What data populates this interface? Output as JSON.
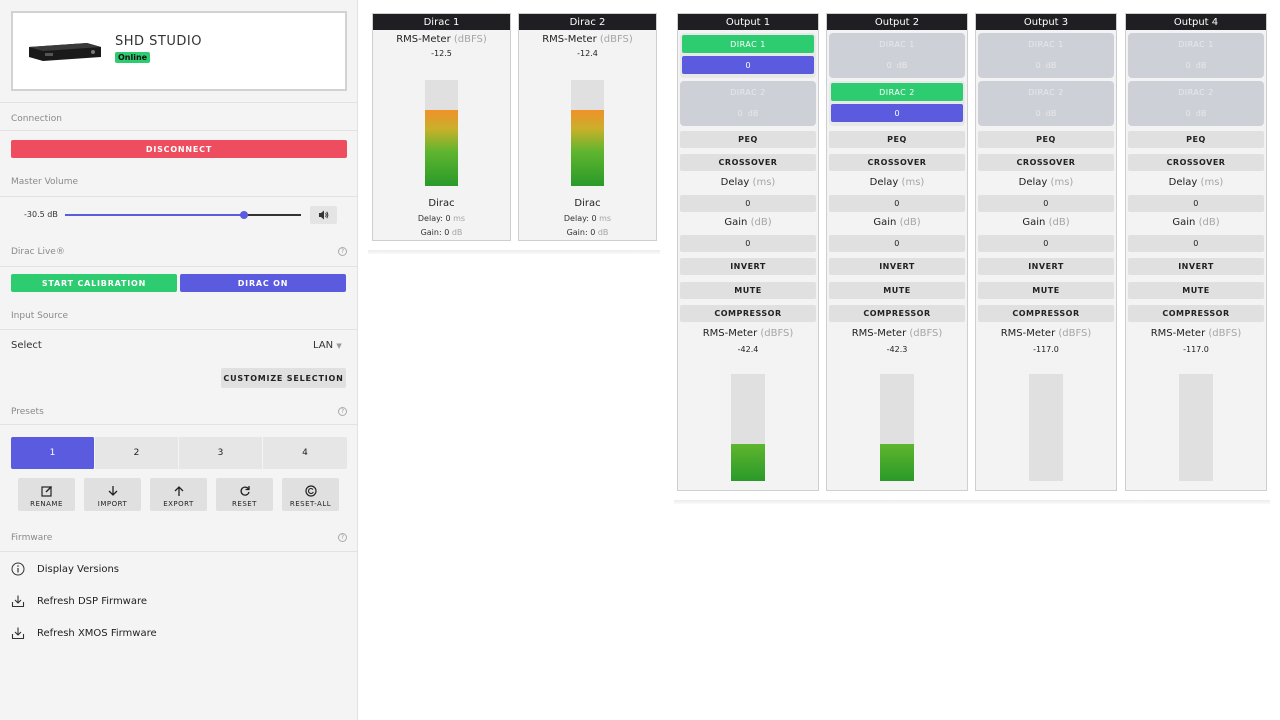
{
  "device": {
    "name": "SHD STUDIO",
    "status": "Online"
  },
  "sections": {
    "connection": "Connection",
    "master_volume": "Master Volume",
    "dirac_live": "Dirac Live®",
    "input_source": "Input Source",
    "presets": "Presets",
    "firmware": "Firmware"
  },
  "buttons": {
    "disconnect": "DISCONNECT",
    "start_calibration": "START CALIBRATION",
    "dirac_on": "DIRAC ON",
    "customize_selection": "CUSTOMIZE SELECTION"
  },
  "volume": {
    "label": "-30.5 dB",
    "position": 0.76
  },
  "input": {
    "label": "Select",
    "value": "LAN"
  },
  "presets": {
    "items": [
      "1",
      "2",
      "3",
      "4"
    ],
    "active": "1",
    "actions": [
      "RENAME",
      "IMPORT",
      "EXPORT",
      "RESET",
      "RESET-ALL"
    ]
  },
  "firmware": {
    "items": [
      "Display Versions",
      "Refresh DSP Firmware",
      "Refresh XMOS Firmware"
    ]
  },
  "colors": {
    "accent": "#5b5bdf",
    "green": "#2ecc71",
    "danger": "#ee4d5f"
  },
  "dirac_panels": [
    {
      "title": "Dirac 1",
      "rms_label": "RMS-Meter",
      "rms_unit": "(dBFS)",
      "rms": "-12.5",
      "level": 0.72,
      "name": "Dirac",
      "delay_label": "Delay:",
      "delay": "0",
      "delay_unit": "ms",
      "gain_label": "Gain:",
      "gain": "0",
      "gain_unit": "dB"
    },
    {
      "title": "Dirac 2",
      "rms_label": "RMS-Meter",
      "rms_unit": "(dBFS)",
      "rms": "-12.4",
      "level": 0.72,
      "name": "Dirac",
      "delay_label": "Delay:",
      "delay": "0",
      "delay_unit": "ms",
      "gain_label": "Gain:",
      "gain": "0",
      "gain_unit": "dB"
    }
  ],
  "output_panels": [
    {
      "title": "Output 1",
      "d1": "DIRAC 1",
      "d1v": "0",
      "d2": "DIRAC 2",
      "d2v": "0",
      "d2unit": "dB",
      "active": 1,
      "peq": "PEQ",
      "crossover": "CROSSOVER",
      "delay_label": "Delay",
      "delay_unit": "(ms)",
      "delay": "0",
      "gain_label": "Gain",
      "gain_unit": "(dB)",
      "gain": "0",
      "invert": "INVERT",
      "mute": "MUTE",
      "compressor": "COMPRESSOR",
      "rms_label": "RMS-Meter",
      "rms_unit": "(dBFS)",
      "rms": "-42.4",
      "level": 0.35
    },
    {
      "title": "Output 2",
      "d1": "DIRAC 1",
      "d1v": "0",
      "d1unit": "dB",
      "d2": "DIRAC 2",
      "d2v": "0",
      "active": 2,
      "peq": "PEQ",
      "crossover": "CROSSOVER",
      "delay_label": "Delay",
      "delay_unit": "(ms)",
      "delay": "0",
      "gain_label": "Gain",
      "gain_unit": "(dB)",
      "gain": "0",
      "invert": "INVERT",
      "mute": "MUTE",
      "compressor": "COMPRESSOR",
      "rms_label": "RMS-Meter",
      "rms_unit": "(dBFS)",
      "rms": "-42.3",
      "level": 0.35
    },
    {
      "title": "Output 3",
      "d1": "DIRAC 1",
      "d1v": "0",
      "d1unit": "dB",
      "d2": "DIRAC 2",
      "d2v": "0",
      "d2unit": "dB",
      "active": 0,
      "peq": "PEQ",
      "crossover": "CROSSOVER",
      "delay_label": "Delay",
      "delay_unit": "(ms)",
      "delay": "0",
      "gain_label": "Gain",
      "gain_unit": "(dB)",
      "gain": "0",
      "invert": "INVERT",
      "mute": "MUTE",
      "compressor": "COMPRESSOR",
      "rms_label": "RMS-Meter",
      "rms_unit": "(dBFS)",
      "rms": "-117.0",
      "level": 0
    },
    {
      "title": "Output 4",
      "d1": "DIRAC 1",
      "d1v": "0",
      "d1unit": "dB",
      "d2": "DIRAC 2",
      "d2v": "0",
      "d2unit": "dB",
      "active": 0,
      "peq": "PEQ",
      "crossover": "CROSSOVER",
      "delay_label": "Delay",
      "delay_unit": "(ms)",
      "delay": "0",
      "gain_label": "Gain",
      "gain_unit": "(dB)",
      "gain": "0",
      "invert": "INVERT",
      "mute": "MUTE",
      "compressor": "COMPRESSOR",
      "rms_label": "RMS-Meter",
      "rms_unit": "(dBFS)",
      "rms": "-117.0",
      "level": 0
    }
  ]
}
